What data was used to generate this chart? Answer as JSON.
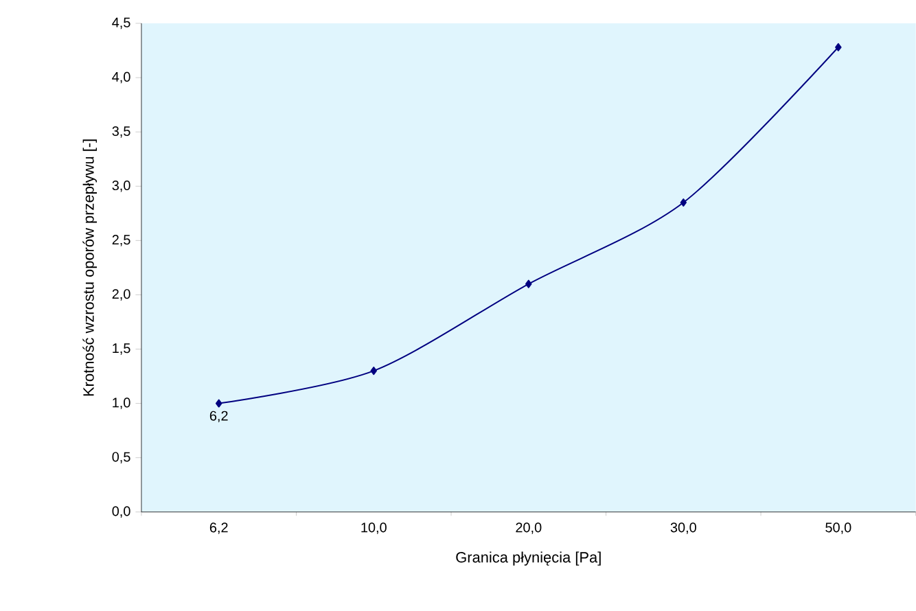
{
  "chart_data": {
    "type": "line",
    "xlabel": "Granica płynięcia [Pa]",
    "ylabel": "Krotność wzrostu oporów przepływu [-]",
    "categories": [
      "6,2",
      "10,0",
      "20,0",
      "30,0",
      "50,0"
    ],
    "series": [
      {
        "color": "#000080",
        "values": [
          1.0,
          1.3,
          2.1,
          2.85,
          4.28
        ]
      }
    ],
    "ylim": [
      0,
      4.5
    ],
    "yticks": [
      {
        "value": 0,
        "label": "0,0"
      },
      {
        "value": 0.5,
        "label": "0,5"
      },
      {
        "value": 1,
        "label": "1,0"
      },
      {
        "value": 1.5,
        "label": "1,5"
      },
      {
        "value": 2,
        "label": "2,0"
      },
      {
        "value": 2.5,
        "label": "2,5"
      },
      {
        "value": 3,
        "label": "3,0"
      },
      {
        "value": 3.5,
        "label": "3,5"
      },
      {
        "value": 4,
        "label": "4,0"
      },
      {
        "value": 4.5,
        "label": "4,5"
      }
    ],
    "annotations": [
      {
        "text": "6,2",
        "x": "6,2",
        "y": 1.0
      }
    ],
    "marker": "diamond",
    "line_style": "solid"
  }
}
